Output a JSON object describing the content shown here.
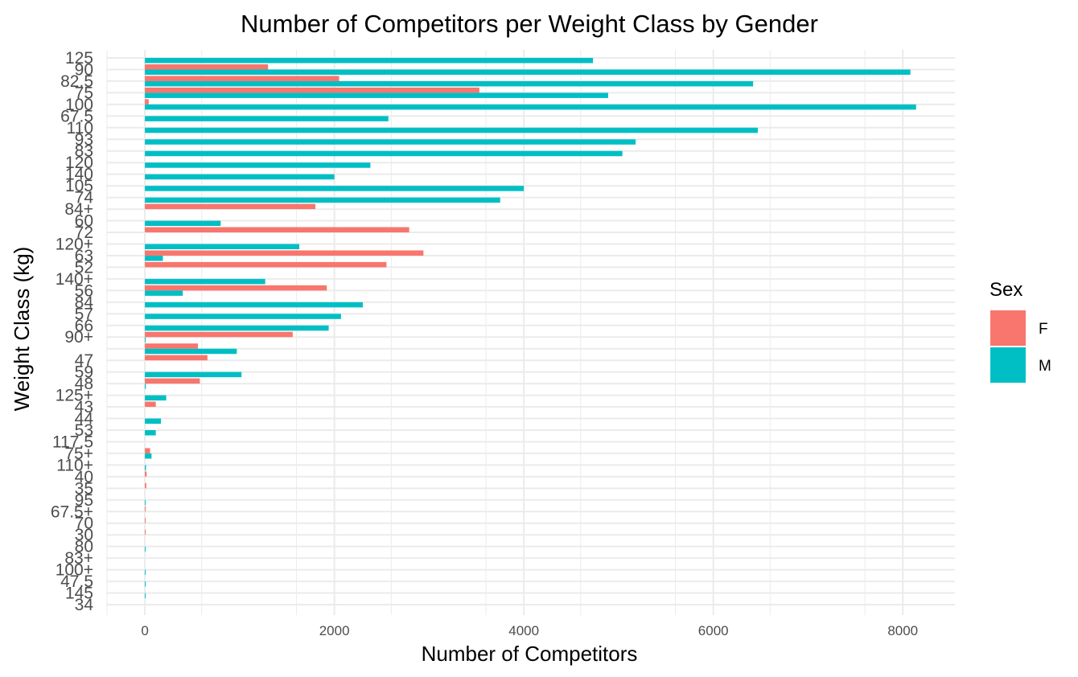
{
  "chart_data": {
    "type": "bar",
    "orientation": "horizontal",
    "title": "Number of Competitors per Weight Class by Gender",
    "xlabel": "Number of Competitors",
    "ylabel": "Weight Class (kg)",
    "xlim": [
      -400,
      8550
    ],
    "xticks": [
      0,
      2000,
      4000,
      6000,
      8000
    ],
    "xtick_labels": [
      "0",
      "2000",
      "4000",
      "6000",
      "8000"
    ],
    "grid": true,
    "legend": {
      "title": "Sex",
      "position": "right"
    },
    "categories": [
      "125",
      "90",
      "82.5",
      "75",
      "100",
      "67.5",
      "110",
      "93",
      "83",
      "120",
      "140",
      "105",
      "74",
      "84+",
      "60",
      "72",
      "120+",
      "63",
      "52",
      "140+",
      "56",
      "84",
      "57",
      "66",
      "90+",
      "",
      "47",
      "59",
      "48",
      "125+",
      "43",
      "44",
      "53",
      "117.5",
      "75+",
      "110+",
      "40",
      "35",
      "95",
      "67.5+",
      "70",
      "30",
      "80",
      "83+",
      "100+",
      "47.5",
      "145",
      "34"
    ],
    "series": [
      {
        "name": "F",
        "color": "#F8766D",
        "values": [
          0,
          1300,
          2050,
          3530,
          40,
          0,
          0,
          0,
          0,
          0,
          0,
          0,
          0,
          1800,
          0,
          2790,
          0,
          2940,
          2550,
          0,
          1920,
          0,
          0,
          0,
          1560,
          560,
          660,
          0,
          580,
          0,
          115,
          0,
          0,
          0,
          55,
          0,
          18,
          15,
          0,
          8,
          5,
          3,
          0,
          0,
          0,
          0,
          0,
          0
        ]
      },
      {
        "name": "M",
        "color": "#00BFC4",
        "values": [
          4730,
          8080,
          6420,
          4890,
          8140,
          2570,
          6470,
          5180,
          5040,
          2380,
          2000,
          4000,
          3750,
          0,
          800,
          0,
          1630,
          190,
          0,
          1270,
          400,
          2300,
          2070,
          1940,
          8,
          970,
          0,
          1020,
          10,
          225,
          0,
          170,
          115,
          0,
          70,
          12,
          0,
          0,
          8,
          0,
          0,
          0,
          5,
          0,
          3,
          2,
          2,
          0
        ]
      }
    ]
  }
}
